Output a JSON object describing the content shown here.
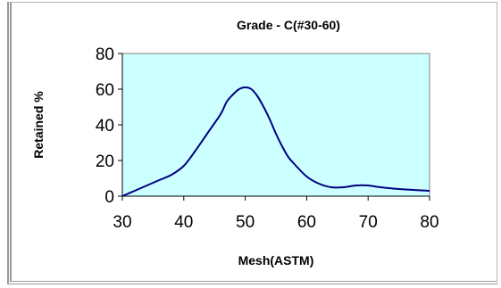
{
  "chart_data": {
    "type": "line",
    "title": "Grade - C(#30-60)",
    "xlabel": "Mesh(ASTM)",
    "ylabel": "Retained %",
    "xlim": [
      30,
      80
    ],
    "ylim": [
      0,
      80
    ],
    "x_ticks": [
      "30",
      "40",
      "50",
      "60",
      "70",
      "80"
    ],
    "y_ticks": [
      "0",
      "20",
      "40",
      "60",
      "80"
    ],
    "grid": false,
    "plot_background": "#ccffff",
    "line_color": "#000080",
    "series": [
      {
        "x": [
          30,
          32,
          34,
          36,
          38,
          40,
          42,
          44,
          46,
          47,
          48,
          49,
          50,
          51,
          52,
          53,
          54,
          55,
          56,
          57,
          58,
          60,
          62,
          64,
          66,
          68,
          70,
          72,
          75,
          80
        ],
        "y": [
          0,
          3,
          6,
          9,
          12,
          17,
          26,
          36,
          46,
          53,
          57,
          60,
          61,
          60,
          56,
          50,
          43,
          35,
          28,
          22,
          18,
          11,
          7,
          5,
          5,
          6,
          6,
          5,
          4,
          3
        ]
      }
    ]
  }
}
